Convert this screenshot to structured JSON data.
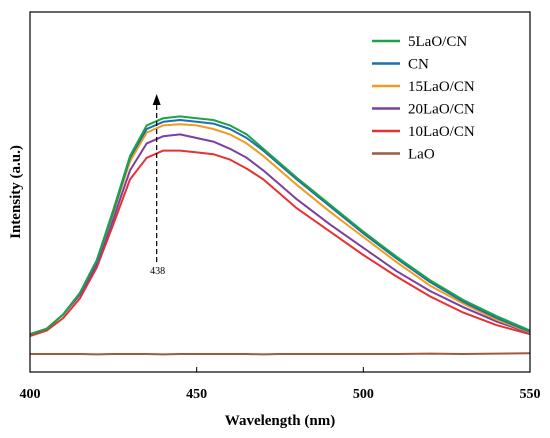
{
  "chart_data": {
    "type": "line",
    "xlabel": "Wavelength (nm)",
    "ylabel": "Intensity (a.u.)",
    "xlim": [
      400,
      550
    ],
    "ylim": [
      0,
      100
    ],
    "xticks": [
      400,
      450,
      500,
      550
    ],
    "y_tick_labels": false,
    "grid": false,
    "legend_position": "top-right",
    "annotation": {
      "text": "438",
      "x": 438,
      "arrow": "up"
    },
    "series": [
      {
        "name": "5LaO/CN",
        "color": "#1aa34a",
        "x": [
          400,
          405,
          410,
          415,
          420,
          425,
          430,
          435,
          440,
          445,
          450,
          455,
          460,
          465,
          470,
          475,
          480,
          490,
          500,
          510,
          520,
          530,
          540,
          550
        ],
        "values": [
          10.5,
          12,
          16,
          22,
          31,
          45,
          60,
          68.5,
          70.5,
          71,
          70.5,
          70,
          68.5,
          66,
          62,
          58,
          54,
          46.5,
          39,
          32,
          25.5,
          20,
          15.5,
          11.5
        ]
      },
      {
        "name": "CN",
        "color": "#1f6fa8",
        "x": [
          400,
          405,
          410,
          415,
          420,
          425,
          430,
          435,
          440,
          445,
          450,
          455,
          460,
          465,
          470,
          475,
          480,
          490,
          500,
          510,
          520,
          530,
          540,
          550
        ],
        "values": [
          10.5,
          12,
          16,
          22,
          31,
          44.5,
          59.5,
          67.5,
          69.5,
          70,
          69.5,
          69,
          67.5,
          65,
          61.5,
          57.5,
          53.5,
          46,
          38.5,
          31.5,
          25,
          19.5,
          15,
          11.2
        ]
      },
      {
        "name": "15LaO/CN",
        "color": "#f39b1e",
        "x": [
          400,
          405,
          410,
          415,
          420,
          425,
          430,
          435,
          440,
          445,
          450,
          455,
          460,
          465,
          470,
          475,
          480,
          490,
          500,
          510,
          520,
          530,
          540,
          550
        ],
        "values": [
          10.5,
          12,
          16,
          22,
          31,
          44,
          58.5,
          66.5,
          68.5,
          68.8,
          68.5,
          67.5,
          66,
          63.5,
          60,
          56,
          52,
          44.5,
          37.5,
          30.5,
          24,
          19,
          14.5,
          11
        ]
      },
      {
        "name": "20LaO/CN",
        "color": "#7b3fa0",
        "x": [
          400,
          405,
          410,
          415,
          420,
          425,
          430,
          435,
          440,
          445,
          450,
          455,
          460,
          465,
          470,
          475,
          480,
          490,
          500,
          510,
          520,
          530,
          540,
          550
        ],
        "values": [
          10.5,
          12,
          16,
          21.5,
          30,
          42.5,
          56,
          63.5,
          65.5,
          66,
          65,
          64,
          62,
          59.5,
          56,
          52,
          48,
          41,
          34.5,
          28,
          22.5,
          18,
          14,
          10.8
        ]
      },
      {
        "name": "10LaO/CN",
        "color": "#e53232",
        "x": [
          400,
          405,
          410,
          415,
          420,
          425,
          430,
          435,
          440,
          445,
          450,
          455,
          460,
          465,
          470,
          475,
          480,
          490,
          500,
          510,
          520,
          530,
          540,
          550
        ],
        "values": [
          10,
          11.5,
          15,
          20.5,
          29,
          41,
          53.5,
          59.5,
          61.5,
          61.5,
          61,
          60.5,
          59,
          56.5,
          53.5,
          49.5,
          45.5,
          39,
          32.5,
          26.5,
          21,
          16.5,
          13,
          10.5
        ]
      },
      {
        "name": "LaO",
        "color": "#a05a3c",
        "x": [
          400,
          405,
          410,
          415,
          420,
          425,
          430,
          435,
          440,
          445,
          450,
          455,
          460,
          465,
          470,
          475,
          480,
          490,
          500,
          510,
          520,
          530,
          540,
          550
        ],
        "values": [
          5,
          5,
          5,
          5,
          4.9,
          5,
          5,
          5,
          4.9,
          5,
          5,
          5,
          5,
          5,
          4.9,
          5,
          5,
          5,
          5,
          5,
          5.1,
          5,
          5.1,
          5.2
        ]
      }
    ]
  }
}
